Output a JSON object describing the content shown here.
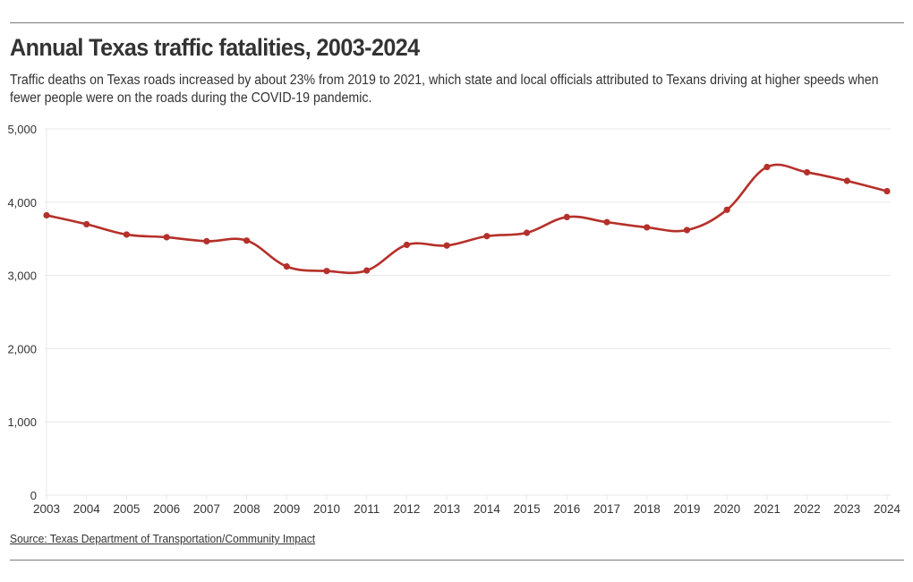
{
  "header": {
    "title": "Annual Texas traffic fatalities, 2003-2024",
    "subtitle": "Traffic deaths on Texas roads increased by about 23% from 2019 to 2021, which state and local officials attributed to Texans driving at higher speeds when fewer people were on the roads during the COVID-19 pandemic."
  },
  "footer": {
    "source": "Source: Texas Department of Transportation/Community Impact"
  },
  "colors": {
    "line": "#b5302a",
    "grid": "#e8e8e8",
    "text": "#333333",
    "rule": "#7a7a7a"
  },
  "chart_data": {
    "type": "line",
    "title": "Annual Texas traffic fatalities, 2003-2024",
    "xlabel": "",
    "ylabel": "",
    "ylim": [
      0,
      5000
    ],
    "yticks": [
      0,
      1000,
      2000,
      3000,
      4000,
      5000
    ],
    "ytick_labels": [
      "0",
      "1,000",
      "2,000",
      "3,000",
      "4,000",
      "5,000"
    ],
    "grid": true,
    "legend": "none",
    "categories": [
      "2003",
      "2004",
      "2005",
      "2006",
      "2007",
      "2008",
      "2009",
      "2010",
      "2011",
      "2012",
      "2013",
      "2014",
      "2015",
      "2016",
      "2017",
      "2018",
      "2019",
      "2020",
      "2021",
      "2022",
      "2023",
      "2024"
    ],
    "series": [
      {
        "name": "Traffic fatalities",
        "values": [
          3821,
          3699,
          3558,
          3521,
          3467,
          3476,
          3122,
          3060,
          3067,
          3417,
          3408,
          3536,
          3582,
          3797,
          3727,
          3656,
          3619,
          3896,
          4480,
          4408,
          4291,
          4150
        ]
      }
    ]
  }
}
